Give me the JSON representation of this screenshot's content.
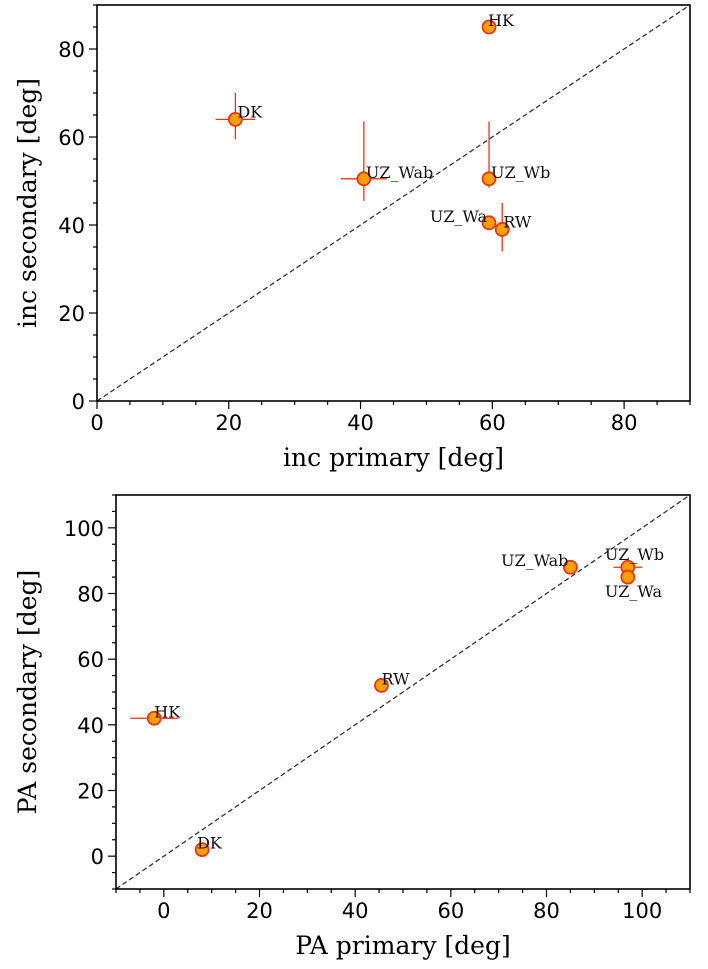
{
  "colors": {
    "marker_fill": "#ffa000",
    "marker_edge": "#e8350e",
    "errorbar": "#e8350e",
    "identity_line": "#333333"
  },
  "chart_data": [
    {
      "type": "scatter",
      "xlabel": "inc primary [deg]",
      "ylabel": "inc secondary [deg]",
      "xlim": [
        0,
        90
      ],
      "ylim": [
        0,
        90
      ],
      "xticks": [
        0,
        20,
        40,
        60,
        80
      ],
      "yticks": [
        0,
        20,
        40,
        60,
        80
      ],
      "grid": false,
      "identity_line": true,
      "points": [
        {
          "label": "HK",
          "x": 59.5,
          "y": 85,
          "xerr": 0,
          "yerr_lo": 0,
          "yerr_hi": 0
        },
        {
          "label": "DK",
          "x": 21,
          "y": 64,
          "xerr": 3,
          "yerr_lo": 4.5,
          "yerr_hi": 6
        },
        {
          "label": "UZ_Wab",
          "x": 40.5,
          "y": 50.5,
          "xerr": 3.5,
          "yerr_lo": 5,
          "yerr_hi": 13
        },
        {
          "label": "UZ_Wb",
          "x": 59.5,
          "y": 50.5,
          "xerr": 0,
          "yerr_lo": 2,
          "yerr_hi": 13
        },
        {
          "label": "UZ_Wa",
          "x": 59.5,
          "y": 40.5,
          "xerr": 0,
          "yerr_lo": 0,
          "yerr_hi": 0
        },
        {
          "label": "RW",
          "x": 61.5,
          "y": 39,
          "xerr": 0,
          "yerr_lo": 5,
          "yerr_hi": 6
        }
      ]
    },
    {
      "type": "scatter",
      "xlabel": "PA primary [deg]",
      "ylabel": "PA secondary [deg]",
      "xlim": [
        -10,
        110
      ],
      "ylim": [
        -10,
        110
      ],
      "xticks": [
        0,
        20,
        40,
        60,
        80,
        100
      ],
      "yticks": [
        0,
        20,
        40,
        60,
        80,
        100
      ],
      "grid": false,
      "identity_line": true,
      "points": [
        {
          "label": "HK",
          "x": -2,
          "y": 42,
          "xerr": 5,
          "yerr_lo": 0,
          "yerr_hi": 0
        },
        {
          "label": "DK",
          "x": 8,
          "y": 2,
          "xerr": 0,
          "yerr_lo": 0,
          "yerr_hi": 0
        },
        {
          "label": "RW",
          "x": 45.5,
          "y": 52,
          "xerr": 0,
          "yerr_lo": 0,
          "yerr_hi": 0
        },
        {
          "label": "UZ_Wab",
          "x": 85,
          "y": 88,
          "xerr": 0,
          "yerr_lo": 0,
          "yerr_hi": 0
        },
        {
          "label": "UZ_Wb",
          "x": 97,
          "y": 88,
          "xerr": 3,
          "yerr_lo": 0,
          "yerr_hi": 0
        },
        {
          "label": "UZ_Wa",
          "x": 97,
          "y": 85,
          "xerr": 0,
          "yerr_lo": 0,
          "yerr_hi": 0
        }
      ]
    }
  ]
}
